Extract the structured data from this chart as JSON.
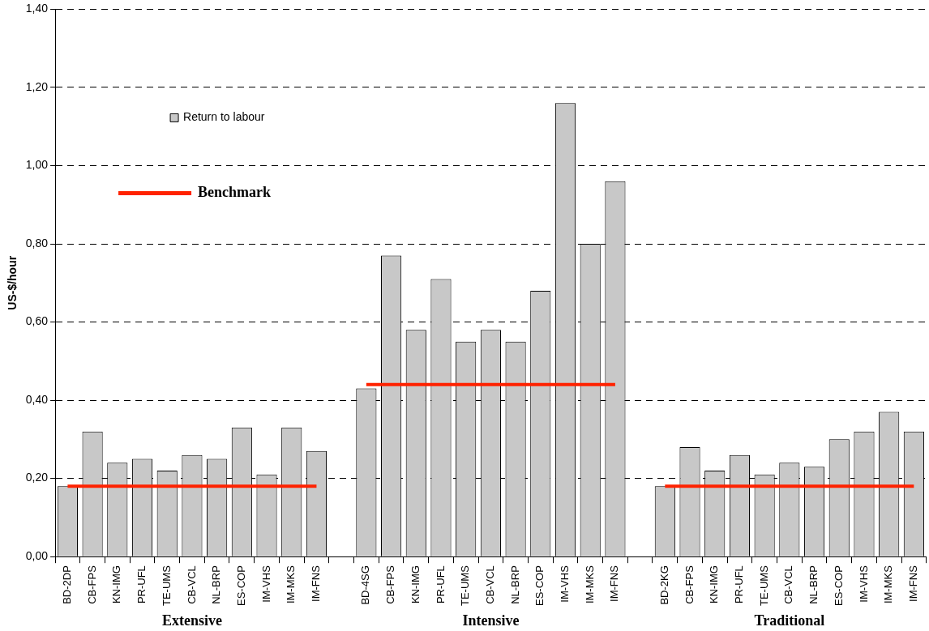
{
  "chart_data": {
    "type": "bar",
    "ylabel": "US-$/hour",
    "categories": [
      "BD-2DP",
      "CB-FPS",
      "KN-IMG",
      "PR-UFL",
      "TE-UMS",
      "CB-VCL",
      "NL-BRP",
      "ES-COP",
      "IM-VHS",
      "IM-MKS",
      "IM-FNS",
      null,
      "BD-4SG",
      "CB-FPS",
      "KN-IMG",
      "PR-UFL",
      "TE-UMS",
      "CB-VCL",
      "NL-BRP",
      "ES-COP",
      "IM-VHS",
      "IM-MKS",
      "IM-FNS",
      null,
      "BD-2KG",
      "CB-FPS",
      "KN-IMG",
      "PR-UFL",
      "TE-UMS",
      "CB-VCL",
      "NL-BRP",
      "ES-COP",
      "IM-VHS",
      "IM-MKS",
      "IM-FNS"
    ],
    "series": [
      {
        "name": "Return to labour",
        "color": "#c8c8c8",
        "values": [
          0.18,
          0.32,
          0.24,
          0.25,
          0.22,
          0.26,
          0.25,
          0.33,
          0.21,
          0.33,
          0.27,
          null,
          0.43,
          0.77,
          0.58,
          0.71,
          0.55,
          0.58,
          0.55,
          0.68,
          1.16,
          0.8,
          0.96,
          null,
          0.18,
          0.28,
          0.22,
          0.26,
          0.21,
          0.24,
          0.23,
          0.3,
          0.32,
          0.37,
          0.32
        ]
      },
      {
        "name": "Benchmark",
        "type": "line",
        "color": "#ff2200",
        "values": [
          0.18,
          0.18,
          0.18,
          0.18,
          0.18,
          0.18,
          0.18,
          0.18,
          0.18,
          0.18,
          0.18,
          null,
          0.44,
          0.44,
          0.44,
          0.44,
          0.44,
          0.44,
          0.44,
          0.44,
          0.44,
          0.44,
          0.44,
          null,
          0.18,
          0.18,
          0.18,
          0.18,
          0.18,
          0.18,
          0.18,
          0.18,
          0.18,
          0.18,
          0.18
        ]
      }
    ],
    "annotations": [
      "Extensive",
      "Intensive",
      "Traditional"
    ],
    "ylim": [
      0,
      1.4
    ],
    "yticks": [
      {
        "value": 0,
        "label": "0,00"
      },
      {
        "value": 0.2,
        "label": "0,20"
      },
      {
        "value": 0.4,
        "label": "0,40"
      },
      {
        "value": 0.6,
        "label": "0,60"
      },
      {
        "value": 0.8,
        "label": "0,80"
      },
      {
        "value": 1.0,
        "label": "1,00"
      },
      {
        "value": 1.2,
        "label": "1,20"
      },
      {
        "value": 1.4,
        "label": "1,40"
      }
    ],
    "grid": "y",
    "legend": "top left",
    "line_style": "solid",
    "marker": "none"
  }
}
